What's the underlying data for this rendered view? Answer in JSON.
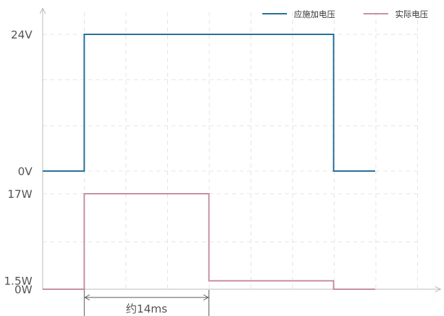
{
  "chart_data": {
    "type": "line",
    "x": [
      0,
      1,
      2,
      3,
      4,
      5,
      6,
      7,
      8
    ],
    "xlim": [
      0,
      8
    ],
    "grid": true,
    "legend_placement": "top-right",
    "panels": [
      {
        "y_ticks": [
          {
            "value": 0,
            "label": "0V",
            "color": "#555555"
          },
          {
            "value": 24,
            "label": "24V",
            "color": "#555555"
          }
        ],
        "ylim": [
          0,
          24
        ]
      },
      {
        "y_ticks": [
          {
            "value": 0,
            "label": "0W",
            "color": "#555555"
          },
          {
            "value": 1.5,
            "label": "1.5W",
            "color": "#2d78a6"
          },
          {
            "value": 17,
            "label": "17W",
            "color": "#555555"
          }
        ],
        "ylim": [
          0,
          17
        ]
      }
    ],
    "series": [
      {
        "name": "应施加电压",
        "color": "#1f6b96",
        "panel": 0,
        "points": [
          [
            0,
            0
          ],
          [
            1,
            0
          ],
          [
            1,
            24
          ],
          [
            7,
            24
          ],
          [
            7,
            0
          ],
          [
            8,
            0
          ]
        ]
      },
      {
        "name": "实际电压",
        "color": "#c48d9c",
        "panel": 1,
        "points": [
          [
            0,
            0
          ],
          [
            1,
            0
          ],
          [
            1,
            17
          ],
          [
            4,
            17
          ],
          [
            4,
            1.5
          ],
          [
            7,
            1.5
          ],
          [
            7,
            0
          ],
          [
            8,
            0
          ]
        ]
      }
    ],
    "annotation": {
      "text": "约14ms",
      "from_x": 1,
      "to_x": 4
    }
  }
}
